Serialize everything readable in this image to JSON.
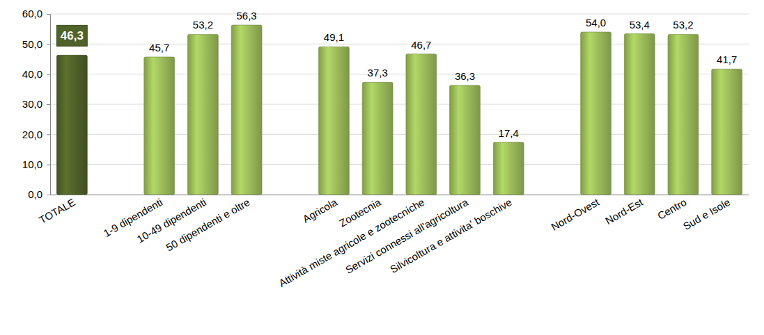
{
  "chart_data": {
    "type": "bar",
    "categories": [
      "TOTALE",
      null,
      "1-9 dipendenti",
      "10-49 dipendenti",
      "50 dipendenti e oltre",
      null,
      "Agricola",
      "Zootecnia",
      "Attività miste agricole e zootecniche",
      "Servizi connessi all'agricoltura",
      "Silvicoltura e attivita' boschive",
      null,
      "Nord-Ovest",
      "Nord-Est",
      "Centro",
      "Sud e Isole"
    ],
    "values": [
      46.3,
      null,
      45.7,
      53.2,
      56.3,
      null,
      49.1,
      37.3,
      46.7,
      36.3,
      17.4,
      null,
      54.0,
      53.4,
      53.2,
      41.7
    ],
    "value_labels": [
      "46,3",
      null,
      "45,7",
      "53,2",
      "56,3",
      null,
      "49,1",
      "37,3",
      "46,7",
      "36,3",
      "17,4",
      null,
      "54,0",
      "53,4",
      "53,2",
      "41,7"
    ],
    "colors": [
      "#4f6228",
      null,
      "#9bbb59",
      "#9bbb59",
      "#9bbb59",
      null,
      "#9bbb59",
      "#9bbb59",
      "#9bbb59",
      "#9bbb59",
      "#9bbb59",
      null,
      "#9bbb59",
      "#9bbb59",
      "#9bbb59",
      "#9bbb59"
    ],
    "ylim": [
      0,
      60
    ],
    "yticks": [
      {
        "value": 0,
        "label": "0,0"
      },
      {
        "value": 10,
        "label": "10,0"
      },
      {
        "value": 20,
        "label": "20,0"
      },
      {
        "value": 30,
        "label": "30,0"
      },
      {
        "value": 40,
        "label": "40,0"
      },
      {
        "value": 50,
        "label": "50,0"
      },
      {
        "value": 60,
        "label": "60,0"
      }
    ],
    "grid": true,
    "data_labels": true
  }
}
